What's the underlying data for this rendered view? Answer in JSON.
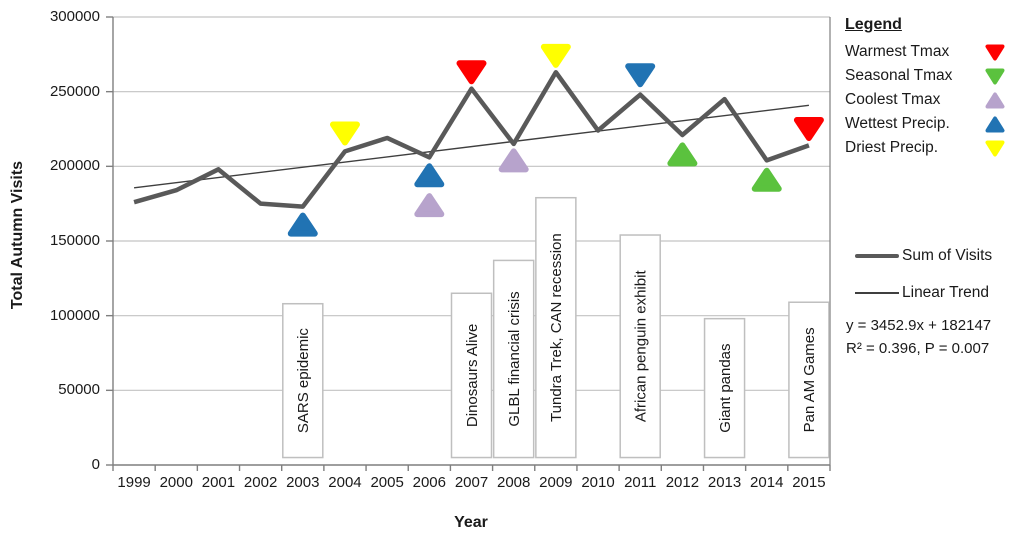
{
  "colors": {
    "sum_line": "#595959",
    "trend_line": "#3f3f3f",
    "gridline": "#c3c3c3",
    "axis": "#7f7f7f",
    "box_border": "#bfbfbf",
    "box_fill": "#ffffff",
    "warmest": "#fe0000",
    "seasonal": "#5bc23e",
    "coolest": "#b7a3cc",
    "wettest": "#2173b3",
    "driest": "#ffff00"
  },
  "chart_data": {
    "type": "line",
    "title": "",
    "xlabel": "Year",
    "ylabel": "Total Autumn Visits",
    "ylim": [
      0,
      300000
    ],
    "grid": "horizontal",
    "yticks": [
      0,
      50000,
      100000,
      150000,
      200000,
      250000,
      300000
    ],
    "ytick_labels": [
      "0",
      "50000",
      "100000",
      "150000",
      "200000",
      "250000",
      "300000"
    ],
    "categories": [
      "1999",
      "2000",
      "2001",
      "2002",
      "2003",
      "2004",
      "2005",
      "2006",
      "2007",
      "2008",
      "2009",
      "2010",
      "2011",
      "2012",
      "2013",
      "2014",
      "2015"
    ],
    "series": [
      {
        "name": "Sum of Visits",
        "values": [
          176000,
          184000,
          198000,
          175000,
          173000,
          210000,
          219000,
          206000,
          252000,
          215000,
          263000,
          224000,
          248000,
          221000,
          245000,
          204000,
          214000
        ]
      },
      {
        "name": "Linear Trend",
        "equation_text": "y = 3452.9x + 182147",
        "stats_text": "R² = 0.396, P = 0.007",
        "slope": 3452.9,
        "intercept": 182147
      }
    ],
    "markers": [
      {
        "year": "2003",
        "value": 161000,
        "type": "Wettest Precip.",
        "color_key": "wettest",
        "direction": "up"
      },
      {
        "year": "2004",
        "value": 222000,
        "type": "Driest Precip.",
        "color_key": "driest",
        "direction": "down"
      },
      {
        "year": "2006",
        "value": 194000,
        "type": "Wettest Precip.",
        "color_key": "wettest",
        "direction": "up"
      },
      {
        "year": "2006",
        "value": 174000,
        "type": "Coolest Tmax",
        "color_key": "coolest",
        "direction": "up"
      },
      {
        "year": "2007",
        "value": 263000,
        "type": "Warmest Tmax",
        "color_key": "warmest",
        "direction": "down"
      },
      {
        "year": "2008",
        "value": 204000,
        "type": "Coolest Tmax",
        "color_key": "coolest",
        "direction": "up"
      },
      {
        "year": "2009",
        "value": 274000,
        "type": "Driest Precip.",
        "color_key": "driest",
        "direction": "down"
      },
      {
        "year": "2011",
        "value": 261000,
        "type": "Wettest Precip.",
        "color_key": "wettest",
        "direction": "down"
      },
      {
        "year": "2012",
        "value": 208000,
        "type": "Seasonal Tmax",
        "color_key": "seasonal",
        "direction": "up"
      },
      {
        "year": "2014",
        "value": 191000,
        "type": "Seasonal Tmax",
        "color_key": "seasonal",
        "direction": "up"
      },
      {
        "year": "2015",
        "value": 225000,
        "type": "Warmest Tmax",
        "color_key": "warmest",
        "direction": "down"
      }
    ],
    "event_boxes": [
      {
        "year": "2003",
        "label": "SARS epidemic",
        "top_value": 108000,
        "bottom_value": 5000
      },
      {
        "year": "2007",
        "label": "Dinosaurs Alive",
        "top_value": 115000,
        "bottom_value": 5000
      },
      {
        "year": "2008",
        "label": "GLBL financial crisis",
        "top_value": 137000,
        "bottom_value": 5000
      },
      {
        "year": "2009",
        "label": "Tundra Trek, CAN recession",
        "top_value": 179000,
        "bottom_value": 5000
      },
      {
        "year": "2011",
        "label": "African penguin exhibit",
        "top_value": 154000,
        "bottom_value": 5000
      },
      {
        "year": "2013",
        "label": "Giant pandas",
        "top_value": 98000,
        "bottom_value": 5000
      },
      {
        "year": "2015",
        "label": "Pan AM Games",
        "top_value": 109000,
        "bottom_value": 5000
      }
    ]
  },
  "legend": {
    "title": "Legend",
    "items": [
      {
        "label": "Warmest Tmax",
        "color_key": "warmest",
        "direction": "down"
      },
      {
        "label": "Seasonal Tmax",
        "color_key": "seasonal",
        "direction": "down"
      },
      {
        "label": "Coolest Tmax",
        "color_key": "coolest",
        "direction": "up"
      },
      {
        "label": "Wettest Precip.",
        "color_key": "wettest",
        "direction": "up"
      },
      {
        "label": "Driest Precip.",
        "color_key": "driest",
        "direction": "down"
      }
    ]
  },
  "line_legend": {
    "sum_label": "Sum of Visits",
    "trend_label": "Linear Trend",
    "equation": "y = 3452.9x + 182147",
    "stats": "R² = 0.396, P = 0.007"
  }
}
